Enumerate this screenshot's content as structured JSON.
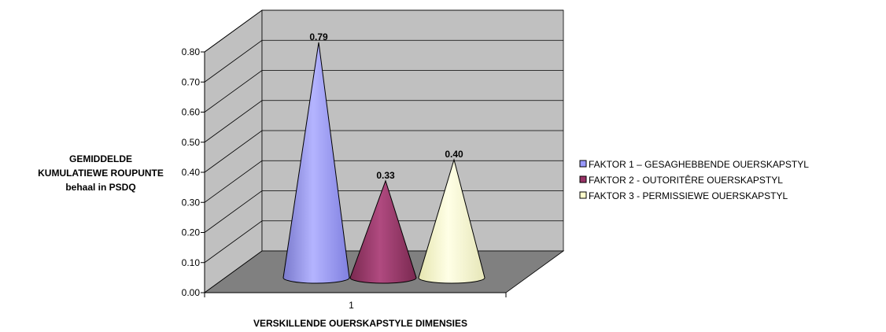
{
  "chart_data": {
    "type": "bar",
    "style": "3d-cone",
    "categories": [
      "1"
    ],
    "series": [
      {
        "name": "FAKTOR 1 – GESAGHEBBENDE OUERSKAPSTYL",
        "values": [
          0.79
        ],
        "color": "#9999FF",
        "label": "0.79"
      },
      {
        "name": "FAKTOR 2 - OUTORITÊRE OUERSKAPSTYL",
        "values": [
          0.33
        ],
        "color": "#993366",
        "label": "0.33"
      },
      {
        "name": "FAKTOR 3 - PERMISSIEWE OUERSKAPSTYL",
        "values": [
          0.4
        ],
        "color": "#FFFFCC",
        "label": "0.40"
      }
    ],
    "xlabel": "VERSKILLENDE OUERSKAPSTYLE DIMENSIES",
    "ylabel_lines": [
      "GEMIDDELDE",
      "KUMULATIEWE ROUPUNTE",
      "behaal in PSDQ"
    ],
    "ylim": [
      0,
      0.8
    ],
    "yticks": [
      "0.00",
      "0.10",
      "0.20",
      "0.30",
      "0.40",
      "0.50",
      "0.60",
      "0.70",
      "0.80"
    ],
    "grid": true,
    "legend_position": "right",
    "wall_color": "#C0C0C0",
    "floor_color": "#808080"
  }
}
